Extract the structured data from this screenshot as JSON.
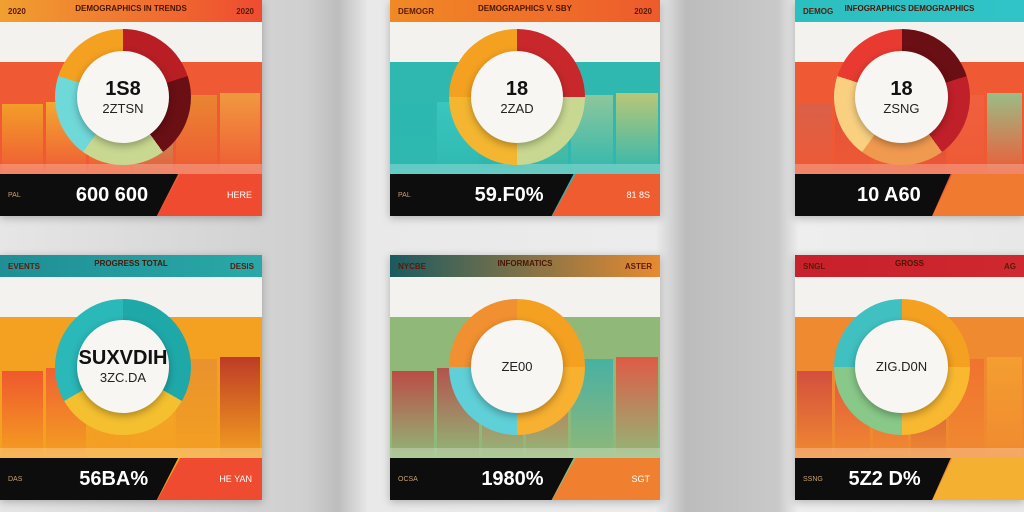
{
  "panels": [
    {
      "header_left": "2020",
      "header_title": "DEMOGRAPHICS IN TRENDS",
      "header_right": "2020",
      "value_main": "1S8",
      "value_sub": "2ZTSN",
      "footer_label": "PAL",
      "footer_value": "600 600",
      "corner_text": "HERE",
      "colors": {
        "header": "#f0a030",
        "header2": "#ef4b30",
        "base": "#ef5a35",
        "footer_corner": "#ef4b30",
        "donut": [
          "#b81e24",
          "#6a0f14",
          "#c8d890",
          "#6fd8d8",
          "#f4a020"
        ]
      },
      "bars": [
        "#f4a428",
        "#f4b030",
        "#f2a830",
        "#8cc88a",
        "#e98a30",
        "#f0a040"
      ]
    },
    {
      "header_left": "DEMOGR",
      "header_title": "DEMOGRAPHICS V. SBY",
      "header_right": "2020",
      "value_main": "18",
      "value_sub": "2ZAD",
      "footer_label": "PAL",
      "footer_value": "59.F0%",
      "corner_text": "81 8S",
      "colors": {
        "header": "#f08a25",
        "header2": "#ee5a2c",
        "base": "#2fb8b0",
        "footer_corner": "#ef5c30",
        "donut": [
          "#c8282c",
          "#c8d890",
          "#f4b630",
          "#f4a020"
        ]
      },
      "bars": [
        "#2ab8b0",
        "#3ac8c0",
        "#2ab0a8",
        "#88c080",
        "#98c898",
        "#c8c870"
      ]
    },
    {
      "header_left": "DEMOG",
      "header_title": "INFOGRAPHICS DEMOGRAPHICS",
      "header_right": "",
      "value_main": "18",
      "value_sub": "ZSNG",
      "footer_label": "",
      "footer_value": "10 A60",
      "corner_text": "",
      "colors": {
        "header": "#2bbfc0",
        "header2": "#30c4c8",
        "base": "#ef5a35",
        "footer_corner": "#f07a30",
        "donut": [
          "#6a0f14",
          "#c0202a",
          "#f09a50",
          "#f8d080",
          "#e83a30"
        ]
      },
      "bars": [
        "#d8604a",
        "#e0503a",
        "#e86040",
        "#c84040",
        "#f06040",
        "#90c890"
      ]
    },
    {
      "header_left": "EVENTS",
      "header_title": "PROGRESS TOTAL",
      "header_right": "DESIS",
      "value_main": "SUXVDIH",
      "value_sub": "3ZC.DA",
      "footer_label": "DAS",
      "footer_value": "56BA%",
      "corner_text": "HE YAN",
      "colors": {
        "header": "#1f8f95",
        "header2": "#2aa8a8",
        "base": "#f4a020",
        "footer_corner": "#ef4b30",
        "donut": [
          "#1fa8a8",
          "#f4c030",
          "#2ab8b8"
        ]
      },
      "bars": [
        "#ef5030",
        "#ef5a35",
        "#f09a30",
        "#f4a830",
        "#e89030",
        "#b83028"
      ]
    },
    {
      "header_left": "NYCBE",
      "header_title": "INFORMATICS",
      "header_right": "ASTER",
      "value_main": "",
      "value_sub": "ZE00",
      "footer_label": "OCSA",
      "footer_value": "1980%",
      "corner_text": "SGT",
      "colors": {
        "header": "#1a5a60",
        "header2": "#e88a30",
        "base": "#90b878",
        "footer_corner": "#f08030",
        "donut": [
          "#f4a020",
          "#f8b030",
          "#60d0d8",
          "#f09030"
        ]
      },
      "bars": [
        "#c04040",
        "#b84848",
        "#d05050",
        "#e05040",
        "#40b0a8",
        "#e85040"
      ]
    },
    {
      "header_left": "SNGL",
      "header_title": "GROSS",
      "header_right": "AG",
      "value_main": "",
      "value_sub": "ZIG.D0N",
      "footer_label": "SSNG",
      "footer_value": "5Z2 D%",
      "corner_text": "",
      "colors": {
        "header": "#c8202c",
        "header2": "#d02830",
        "base": "#f08a30",
        "footer_corner": "#f4b030",
        "donut": [
          "#f4a020",
          "#f8b830",
          "#88c888",
          "#40c0c0"
        ]
      },
      "bars": [
        "#d04840",
        "#e05040",
        "#e86040",
        "#c04040",
        "#f07030",
        "#f4a030"
      ]
    }
  ]
}
